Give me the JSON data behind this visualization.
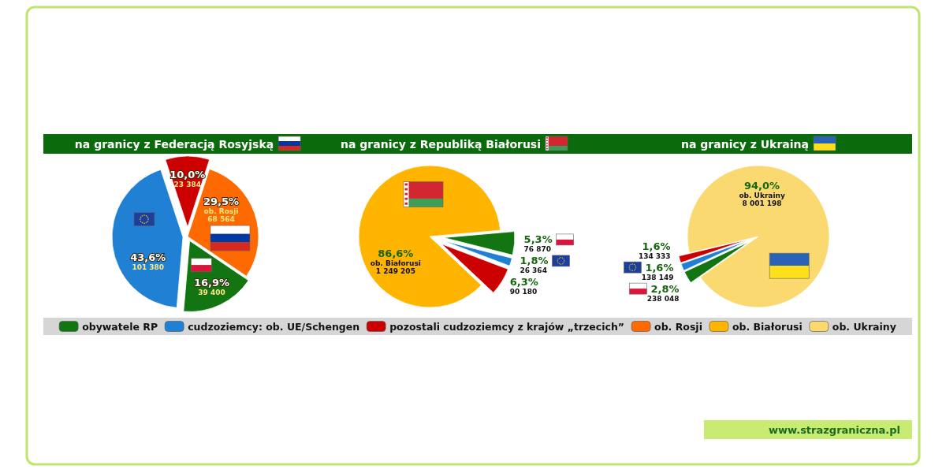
{
  "chart_data": [
    {
      "type": "pie",
      "title": "na granicy z Federacją Rosyjską",
      "categories": [
        "obywatele RP",
        "cudzoziemcy: ob. UE/Schengen",
        "pozostali cudzoziemcy z krajów „trzecich”",
        "ob. Rosji"
      ],
      "values": [
        39400,
        101380,
        23384,
        68564
      ],
      "colors": [
        "#127512",
        "#1f80d4",
        "#cc0000",
        "#ff6a00"
      ],
      "value_labels": [
        "16,9%\n39 400",
        "43,6%\n101 380",
        "10,0%\n23 384",
        "29,5%\nob. Rosji\n68 564"
      ],
      "legend": "bottom"
    },
    {
      "type": "pie",
      "title": "na granicy z Republiką Białorusi",
      "categories": [
        null,
        null,
        null,
        "ob. Białorusi"
      ],
      "values": [
        76870,
        26364,
        90180,
        1249205
      ],
      "colors": [
        "#127512",
        "#1f80d4",
        "#cc0000",
        "#ffb400"
      ],
      "value_labels": [
        "5,3%\n76 870",
        "1,8%\n26 364",
        "6,3%\n90 180",
        "86,6%\nob. Białorusi\n1 249 205"
      ],
      "legend": "bottom"
    },
    {
      "type": "pie",
      "title": "na granicy z Ukrainą",
      "categories": [
        null,
        null,
        null,
        "ob. Ukrainy"
      ],
      "values": [
        238048,
        138149,
        134333,
        8001198
      ],
      "colors": [
        "#127512",
        "#1f80d4",
        "#cc0000",
        "#fbd971"
      ],
      "value_labels": [
        "2,8%\n238 048",
        "1,6%\n138 149",
        "1,6%\n134 333",
        "94,0%\nob. Ukrainy\n8 001 198"
      ],
      "legend": "bottom",
      "annotations": [
        "www.strazgraniczna.pl"
      ]
    }
  ]
}
